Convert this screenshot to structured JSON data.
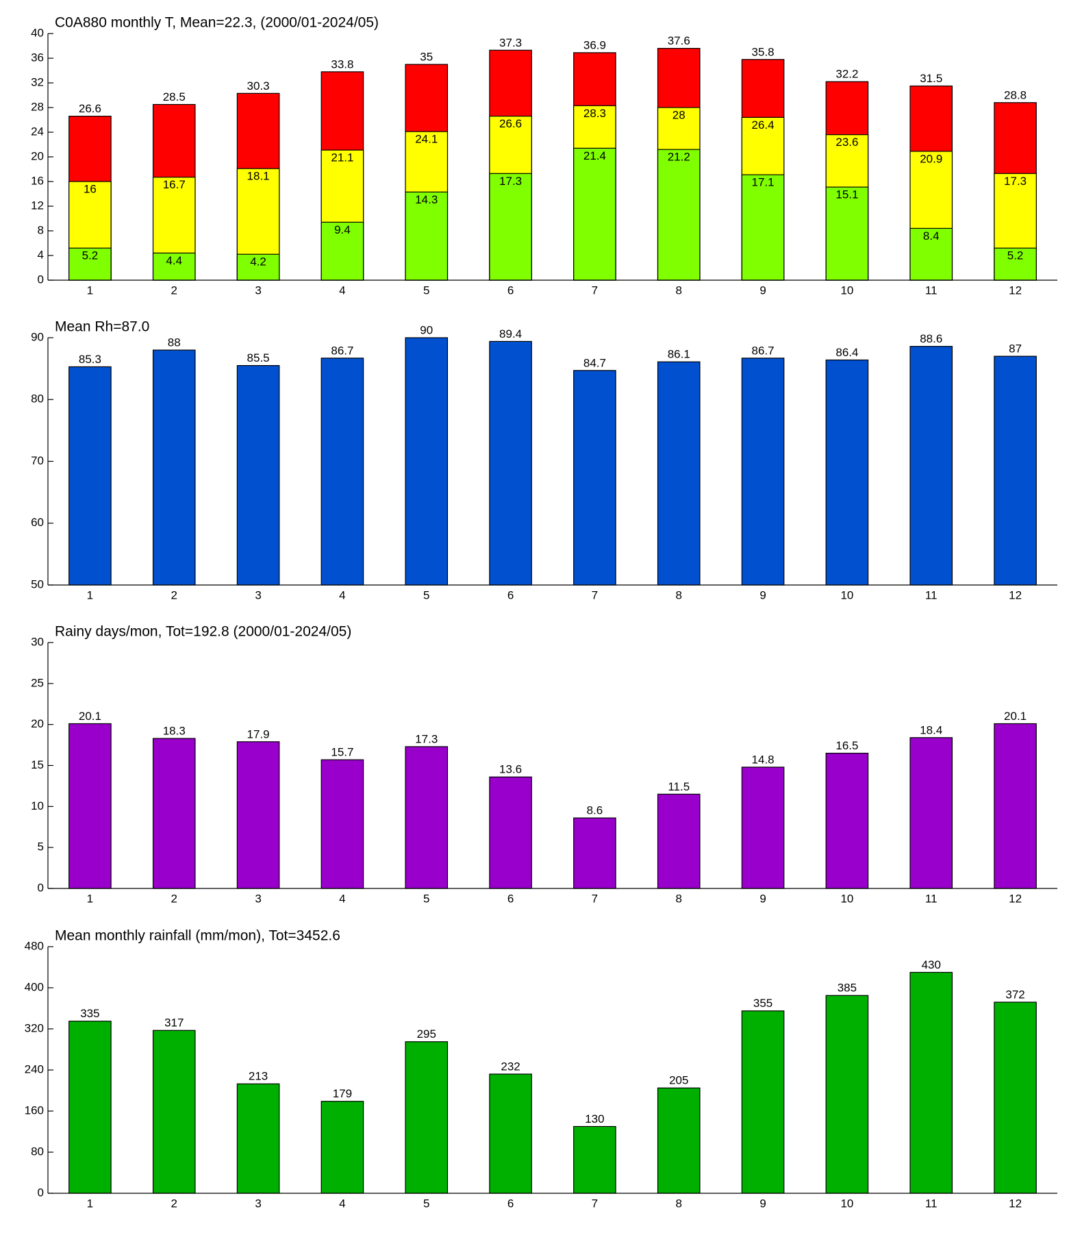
{
  "chart_data": [
    {
      "type": "bar",
      "title": "C0A880 monthly T, Mean=22.3, (2000/01-2024/05)",
      "categories": [
        "1",
        "2",
        "3",
        "4",
        "5",
        "6",
        "7",
        "8",
        "9",
        "10",
        "11",
        "12"
      ],
      "series": [
        {
          "color": "#80ff00",
          "values": [
            5.2,
            4.4,
            4.2,
            9.4,
            14.3,
            17.3,
            21.4,
            21.2,
            17.1,
            15.1,
            8.4,
            5.2
          ]
        },
        {
          "color": "#ffff00",
          "values": [
            16,
            16.7,
            18.1,
            21.1,
            24.1,
            26.6,
            28.3,
            28,
            26.4,
            23.6,
            20.9,
            17.3
          ]
        },
        {
          "color": "#ff0000",
          "values": [
            26.6,
            28.5,
            30.3,
            33.8,
            35,
            37.3,
            36.9,
            37.6,
            35.8,
            32.2,
            31.5,
            28.8
          ]
        }
      ],
      "ylim": [
        0,
        40
      ],
      "yticks": [
        0,
        4,
        8,
        12,
        16,
        20,
        24,
        28,
        32,
        36,
        40
      ]
    },
    {
      "type": "bar",
      "title": "Mean Rh=87.0",
      "categories": [
        "1",
        "2",
        "3",
        "4",
        "5",
        "6",
        "7",
        "8",
        "9",
        "10",
        "11",
        "12"
      ],
      "color": "#0050d0",
      "values": [
        85.3,
        88,
        85.5,
        86.7,
        90,
        89.4,
        84.7,
        86.1,
        86.7,
        86.4,
        88.6,
        87
      ],
      "ylim": [
        50,
        90
      ],
      "yticks": [
        50,
        60,
        70,
        80,
        90
      ]
    },
    {
      "type": "bar",
      "title": "Rainy days/mon, Tot=192.8 (2000/01-2024/05)",
      "categories": [
        "1",
        "2",
        "3",
        "4",
        "5",
        "6",
        "7",
        "8",
        "9",
        "10",
        "11",
        "12"
      ],
      "color": "#9900cc",
      "values": [
        20.1,
        18.3,
        17.9,
        15.7,
        17.3,
        13.6,
        8.6,
        11.5,
        14.8,
        16.5,
        18.4,
        20.1
      ],
      "ylim": [
        0,
        30
      ],
      "yticks": [
        0,
        5,
        10,
        15,
        20,
        25,
        30
      ]
    },
    {
      "type": "bar",
      "title": "Mean monthly rainfall (mm/mon), Tot=3452.6",
      "categories": [
        "1",
        "2",
        "3",
        "4",
        "5",
        "6",
        "7",
        "8",
        "9",
        "10",
        "11",
        "12"
      ],
      "color": "#00b000",
      "values": [
        335,
        317,
        213,
        179,
        295,
        232,
        130,
        205,
        355,
        385,
        430,
        372
      ],
      "ylim": [
        0,
        480
      ],
      "yticks": [
        0,
        80,
        160,
        240,
        320,
        400,
        480
      ]
    }
  ]
}
